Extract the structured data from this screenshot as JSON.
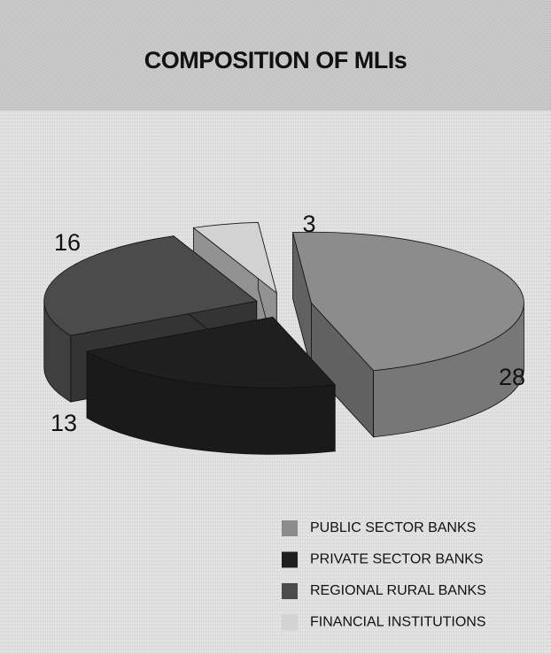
{
  "chart_data": {
    "type": "pie",
    "title": "COMPOSITION OF MLIs",
    "categories": [
      "PUBLIC SECTOR BANKS",
      "PRIVATE SECTOR BANKS",
      "REGIONAL RURAL BANKS",
      "FINANCIAL INSTITUTIONS"
    ],
    "values": [
      28,
      13,
      16,
      3
    ],
    "colors": [
      "#8c8c8c",
      "#1f1f1f",
      "#4b4b4b",
      "#d2d2d2"
    ],
    "legend": "bottom-right"
  }
}
